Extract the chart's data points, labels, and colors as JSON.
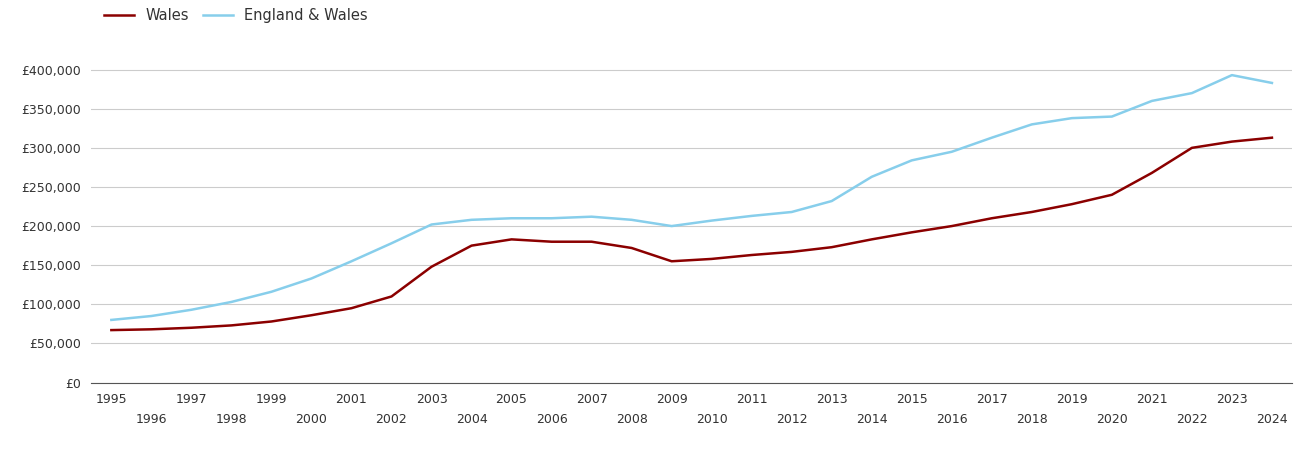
{
  "wales": {
    "years": [
      1995,
      1996,
      1997,
      1998,
      1999,
      2000,
      2001,
      2002,
      2003,
      2004,
      2005,
      2006,
      2007,
      2008,
      2009,
      2010,
      2011,
      2012,
      2013,
      2014,
      2015,
      2016,
      2017,
      2018,
      2019,
      2020,
      2021,
      2022,
      2023,
      2024
    ],
    "values": [
      67000,
      68000,
      70000,
      73000,
      78000,
      86000,
      95000,
      110000,
      148000,
      175000,
      183000,
      180000,
      180000,
      172000,
      155000,
      158000,
      163000,
      167000,
      173000,
      183000,
      192000,
      200000,
      210000,
      218000,
      228000,
      240000,
      268000,
      300000,
      308000,
      313000
    ]
  },
  "england_wales": {
    "years": [
      1995,
      1996,
      1997,
      1998,
      1999,
      2000,
      2001,
      2002,
      2003,
      2004,
      2005,
      2006,
      2007,
      2008,
      2009,
      2010,
      2011,
      2012,
      2013,
      2014,
      2015,
      2016,
      2017,
      2018,
      2019,
      2020,
      2021,
      2022,
      2023,
      2024
    ],
    "values": [
      80000,
      85000,
      93000,
      103000,
      116000,
      133000,
      155000,
      178000,
      202000,
      208000,
      210000,
      210000,
      212000,
      208000,
      200000,
      207000,
      213000,
      218000,
      232000,
      263000,
      284000,
      295000,
      313000,
      330000,
      338000,
      340000,
      360000,
      370000,
      393000,
      383000
    ]
  },
  "wales_color": "#8B0000",
  "england_wales_color": "#87CEEB",
  "background_color": "#ffffff",
  "grid_color": "#cccccc",
  "ylim": [
    0,
    420000
  ],
  "yticks": [
    0,
    50000,
    100000,
    150000,
    200000,
    250000,
    300000,
    350000,
    400000
  ],
  "legend_labels": [
    "Wales",
    "England & Wales"
  ],
  "xlabel": "",
  "ylabel": ""
}
